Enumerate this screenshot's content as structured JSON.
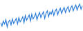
{
  "chart_data": {
    "type": "line",
    "color": "#2f7fd8",
    "grid": false,
    "tick_labels": false,
    "ylim": [
      20,
      90
    ],
    "categories": [
      null,
      null,
      null,
      null,
      null,
      null,
      null,
      null,
      null,
      null,
      null,
      null,
      null,
      null,
      null,
      null,
      null,
      null,
      null,
      null,
      null,
      null,
      null,
      null,
      null,
      null,
      null,
      null,
      null,
      null,
      null,
      null,
      null,
      null,
      null,
      null,
      null,
      null,
      null,
      null,
      null,
      null,
      null,
      null,
      null,
      null,
      null,
      null,
      null,
      null,
      null,
      null,
      null,
      null,
      null,
      null,
      null,
      null,
      null,
      null,
      null,
      null,
      null,
      null
    ],
    "values": [
      38,
      30,
      42,
      35,
      45,
      28,
      40,
      44,
      33,
      47,
      36,
      42,
      48,
      35,
      50,
      40,
      45,
      52,
      38,
      55,
      44,
      50,
      56,
      42,
      58,
      47,
      52,
      60,
      45,
      55,
      62,
      50,
      58,
      64,
      48,
      60,
      66,
      52,
      63,
      58,
      68,
      55,
      65,
      70,
      57,
      66,
      72,
      60,
      68,
      74,
      62,
      70,
      76,
      64,
      72,
      78,
      66,
      74,
      80,
      68,
      76,
      82,
      70,
      78
    ]
  }
}
